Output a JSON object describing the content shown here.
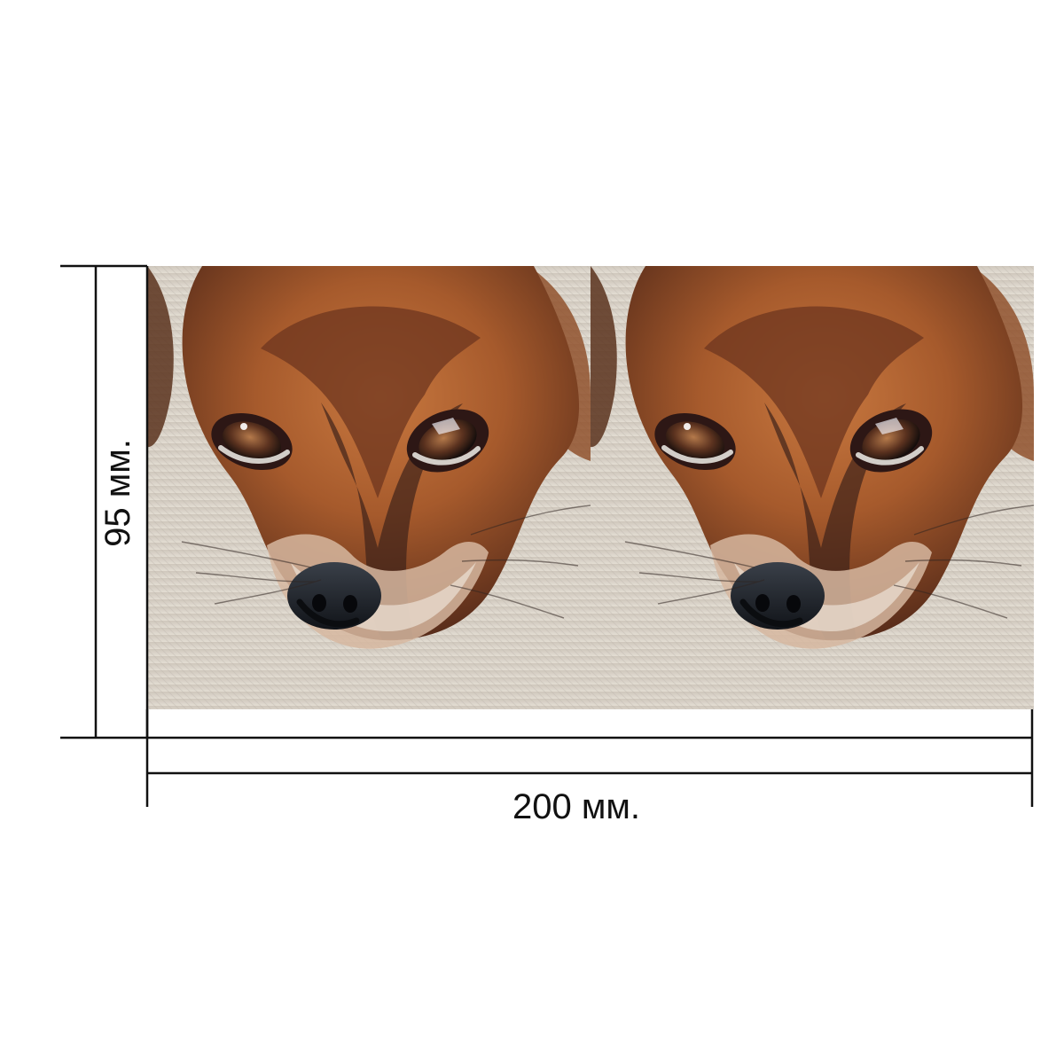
{
  "dimension_labels": {
    "height": "95 мм.",
    "width": "200 мм."
  },
  "product_preview": {
    "image_description_icon": "dog-face-photo",
    "repeat_count": 2
  },
  "colors": {
    "line": "#111111",
    "background": "#ffffff",
    "fabric": "#ddd6cc",
    "fur_main": "#a45a2b",
    "fur_dark": "#5a2c18",
    "nose": "#1b1f25"
  }
}
